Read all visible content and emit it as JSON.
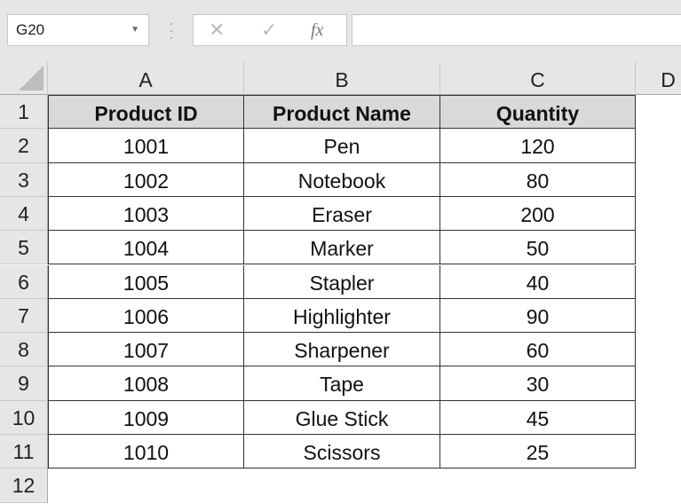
{
  "formula_bar": {
    "name_box": "G20",
    "formula": "",
    "cancel_icon": "✕",
    "enter_icon": "✓",
    "fx_label": "fx"
  },
  "columns": [
    "A",
    "B",
    "C",
    "D"
  ],
  "rows": [
    "1",
    "2",
    "3",
    "4",
    "5",
    "6",
    "7",
    "8",
    "9",
    "10",
    "11",
    "12"
  ],
  "table": {
    "headers": [
      "Product ID",
      "Product Name",
      "Quantity"
    ],
    "data": [
      [
        "1001",
        "Pen",
        "120"
      ],
      [
        "1002",
        "Notebook",
        "80"
      ],
      [
        "1003",
        "Eraser",
        "200"
      ],
      [
        "1004",
        "Marker",
        "50"
      ],
      [
        "1005",
        "Stapler",
        "40"
      ],
      [
        "1006",
        "Highlighter",
        "90"
      ],
      [
        "1007",
        "Sharpener",
        "60"
      ],
      [
        "1008",
        "Tape",
        "30"
      ],
      [
        "1009",
        "Glue Stick",
        "45"
      ],
      [
        "1010",
        "Scissors",
        "25"
      ]
    ]
  },
  "colors": {
    "header_fill": "#d9d9d9",
    "chrome": "#e6e6e6"
  }
}
